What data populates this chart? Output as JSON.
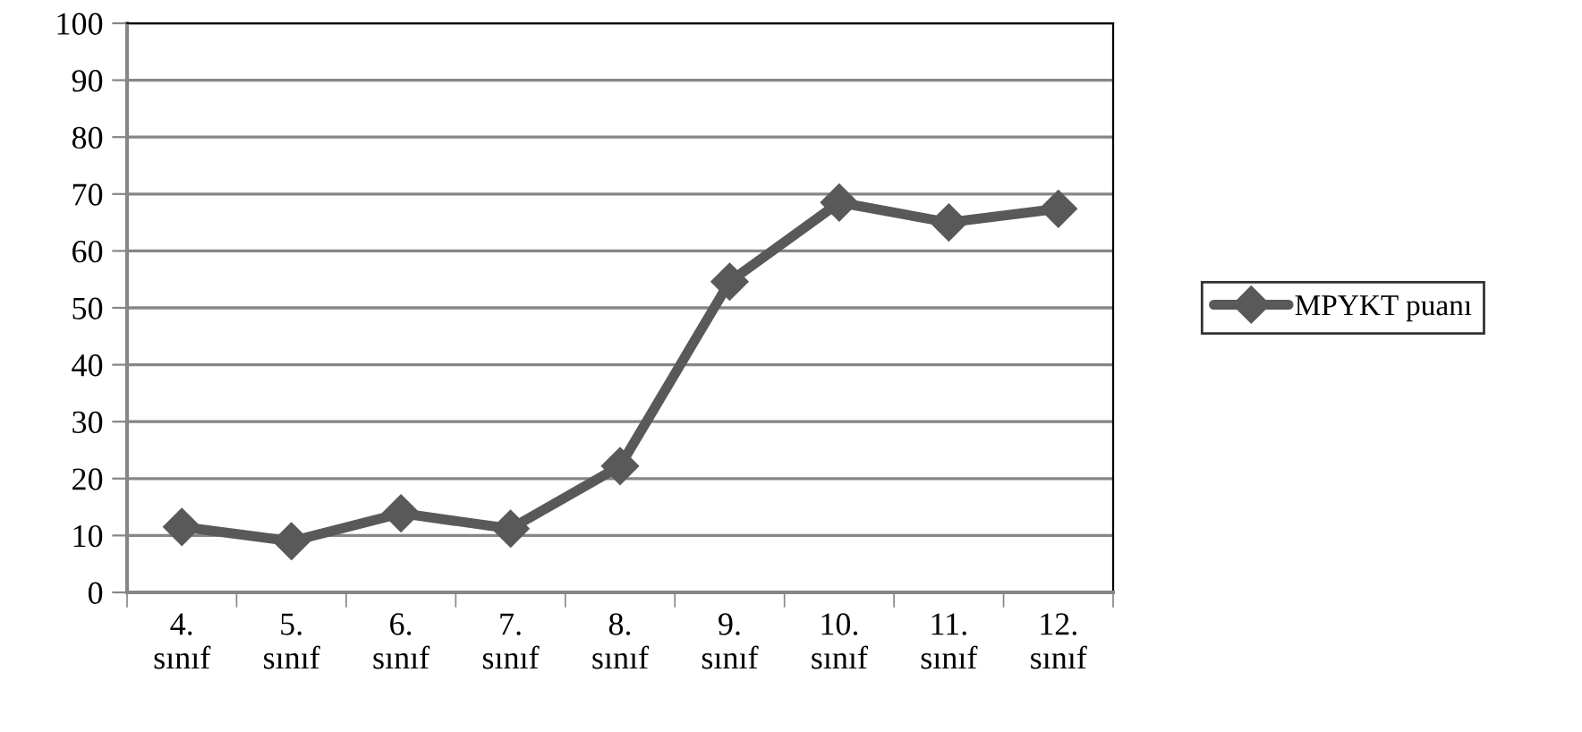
{
  "chart_data": {
    "type": "line",
    "categories": [
      "4.\nsınıf",
      "5.\nsınıf",
      "6.\nsınıf",
      "7.\nsınıf",
      "8.\nsınıf",
      "9.\nsınıf",
      "10.\nsınıf",
      "11.\nsınıf",
      "12.\nsınıf"
    ],
    "series": [
      {
        "name": "MPYKT puanı",
        "color": "#595959",
        "values": [
          11.5,
          9.0,
          13.9,
          11.2,
          22.2,
          54.6,
          68.5,
          65.0,
          67.4
        ]
      }
    ],
    "ylim": [
      0,
      100
    ],
    "yticks": [
      0,
      10,
      20,
      30,
      40,
      50,
      60,
      70,
      80,
      90,
      100
    ],
    "grid": "y",
    "legend": "right",
    "marker": "diamond",
    "line_style": "solid"
  }
}
